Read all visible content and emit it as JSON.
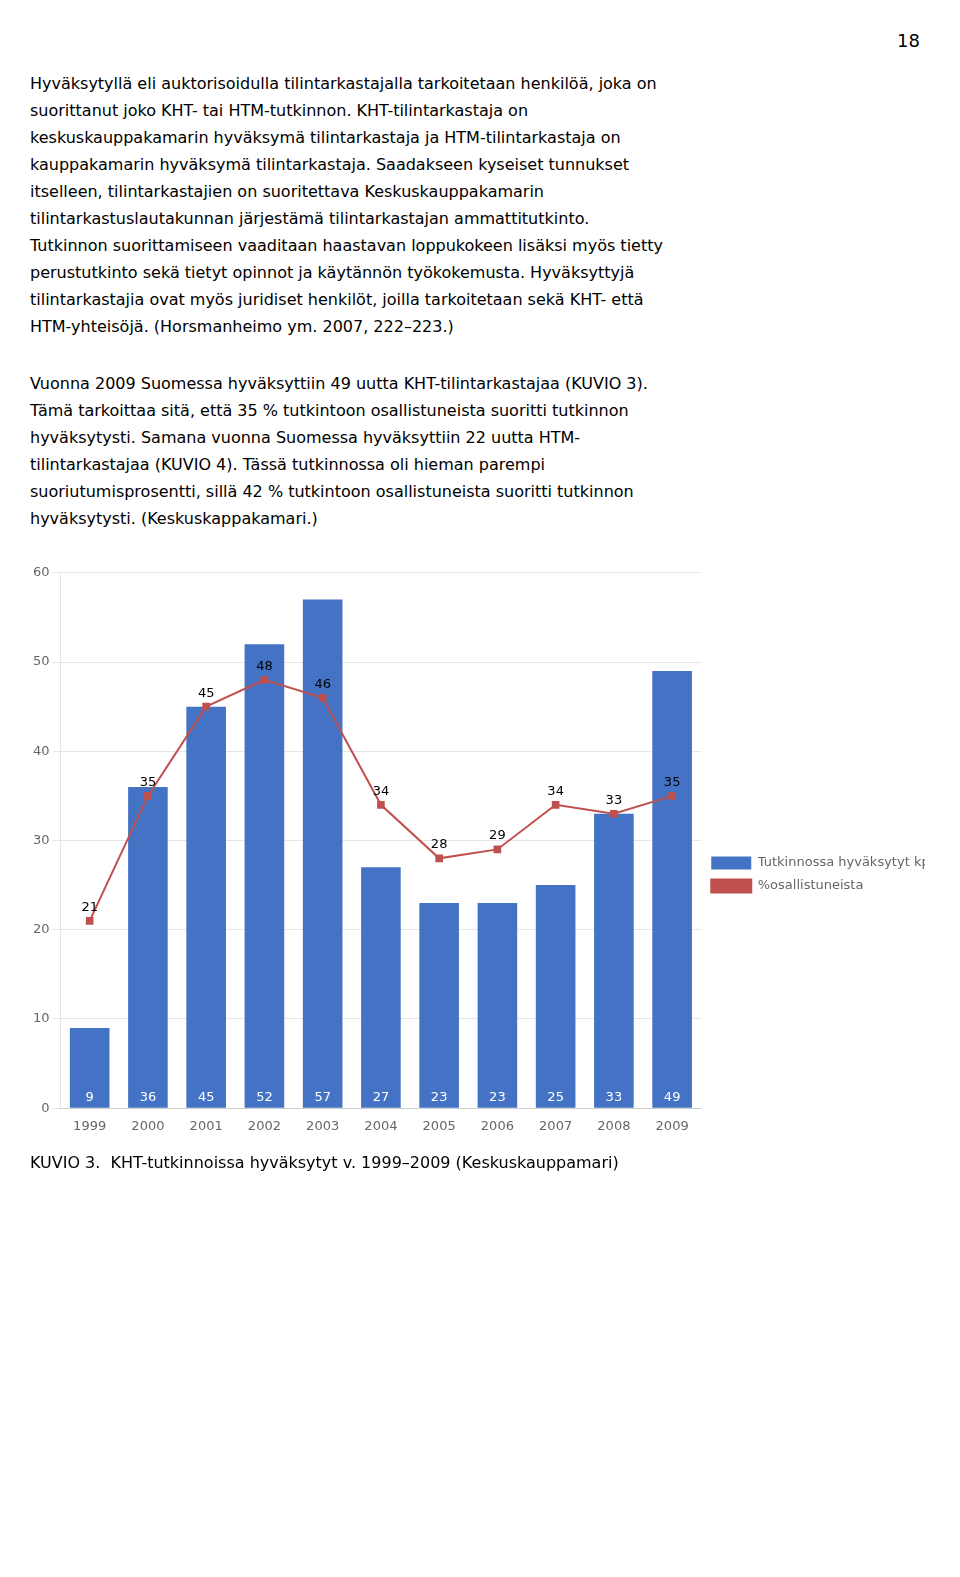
{
  "page_number": "18",
  "paragraphs": [
    [
      "Hyväksytyllä eli auktorisoidulla tilintarkastajalla tarkoitetaan henkilöä, joka on",
      "suorittanut joko KHT- tai HTM-tutkinnon. KHT-tilintarkastaja on",
      "keskuskauppakamarin hyväksymä tilintarkastaja ja HTM-tilintarkastaja on",
      "kauppakamarin hyväksymä tilintarkastaja. Saadakseen kyseiset tunnukset",
      "itselleen, tilintarkastajien on suoritettava Keskuskauppakamarin",
      "tilintarkastuslautakunnan järjestämä tilintarkastajan ammattitutkinto.",
      "Tutkinnon suorittamiseen vaaditaan haastavan loppukokeen lisäksi myös tietty",
      "perustutkinto sekä tietyt opinnot ja käytännön työkokemusta. Hyväksyttyjä",
      "tilintarkastajia ovat myös juridiset henkilöt, joilla tarkoitetaan sekä KHT- että",
      "HTM-yhteisöjä. (Horsmanheimo ym. 2007, 222–223.)"
    ],
    [
      "Vuonna 2009 Suomessa hyväksyttiin 49 uutta KHT-tilintarkastajaa (KUVIO 3).",
      "Tämä tarkoittaa sitä, että 35 % tutkintoon osallistuneista suoritti tutkinnon",
      "hyväksytysti. Samana vuonna Suomessa hyväksyttiin 22 uutta HTM-",
      "tilintarkastajaa (KUVIO 4). Tässä tutkinnossa oli hieman parempi",
      "suoriutumisprosentti, sillä 42 % tutkintoon osallistuneista suoritti tutkinnon",
      "hyväksytysti. (Keskuskappakamari.)"
    ]
  ],
  "chart_data": {
    "type": "bar",
    "title": "KUVIO 3.  KHT-tutkinnoissa hyväksytyt v. 1999–2009 (Keskuskauppamari)",
    "categories": [
      "1999",
      "2000",
      "2001",
      "2002",
      "2003",
      "2004",
      "2005",
      "2006",
      "2007",
      "2008",
      "2009"
    ],
    "series": [
      {
        "name": "Tutkinnossa hyväksytyt kpl",
        "type": "bar",
        "color": "#4472C4",
        "values": [
          9,
          36,
          45,
          52,
          57,
          27,
          23,
          23,
          25,
          33,
          49
        ]
      },
      {
        "name": "%osallistuneista",
        "type": "line",
        "color": "#C0504D",
        "marker": "square",
        "values": [
          21,
          35,
          45,
          48,
          46,
          34,
          28,
          29,
          34,
          33,
          35
        ]
      }
    ],
    "ylim": [
      0,
      60
    ],
    "yticks": [
      0,
      10,
      20,
      30,
      40,
      50,
      60
    ],
    "grid": true,
    "legend": "right",
    "data_labels": true
  }
}
